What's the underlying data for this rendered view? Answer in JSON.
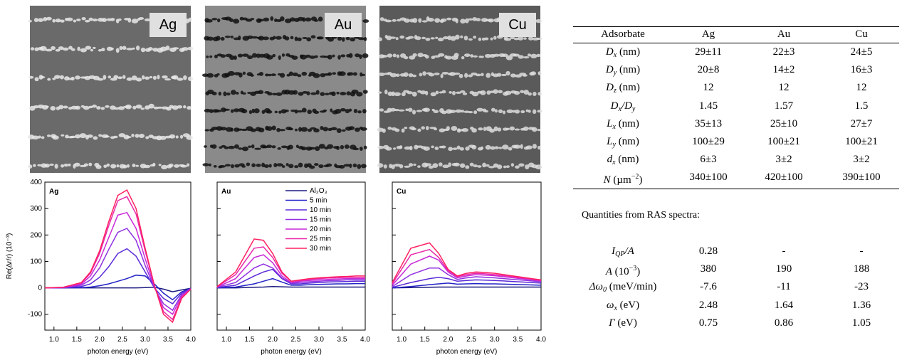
{
  "images": [
    {
      "label": "Ag"
    },
    {
      "label": "Au"
    },
    {
      "label": "Cu"
    }
  ],
  "chart_data": [
    {
      "type": "line",
      "title": "Ag",
      "ylabel": "Re(Δr/r) (10⁻³)",
      "xlabel": "photon energy (eV)",
      "x": [
        0.8,
        1.2,
        1.6,
        1.8,
        2.0,
        2.2,
        2.4,
        2.6,
        2.8,
        3.0,
        3.2,
        3.4,
        3.6,
        3.8,
        4.0
      ],
      "xlim": [
        0.8,
        4.0
      ],
      "ylim": [
        -160,
        400
      ],
      "xticks": [
        {
          "value": 1,
          "label": "1.0"
        },
        {
          "value": 1.5,
          "label": "1.5"
        },
        {
          "value": 2,
          "label": "2.0"
        },
        {
          "value": 2.5,
          "label": "2.5"
        },
        {
          "value": 3,
          "label": "3.0"
        },
        {
          "value": 3.5,
          "label": "3.5"
        },
        {
          "value": 4,
          "label": "4.0"
        }
      ],
      "yticks": [
        -100,
        0,
        100,
        200,
        300,
        400
      ],
      "series": [
        {
          "color": "#1a1a80",
          "values": [
            0,
            0,
            0,
            0,
            0,
            0,
            0,
            0,
            0,
            1,
            2,
            -5,
            -15,
            -8,
            -2
          ]
        },
        {
          "color": "#2222c8",
          "values": [
            0,
            0,
            1,
            3,
            8,
            15,
            25,
            35,
            48,
            45,
            15,
            -20,
            -45,
            -15,
            -2
          ]
        },
        {
          "color": "#5a2ad8",
          "values": [
            0,
            0,
            5,
            15,
            40,
            80,
            130,
            148,
            120,
            60,
            0,
            -40,
            -60,
            -20,
            -2
          ]
        },
        {
          "color": "#9030e0",
          "values": [
            0,
            1,
            10,
            30,
            75,
            145,
            210,
            225,
            180,
            85,
            0,
            -60,
            -85,
            -25,
            -3
          ]
        },
        {
          "color": "#c828d8",
          "values": [
            0,
            1,
            14,
            45,
            105,
            190,
            275,
            285,
            225,
            110,
            5,
            -75,
            -100,
            -30,
            -4
          ]
        },
        {
          "color": "#e828a8",
          "values": [
            0,
            2,
            18,
            55,
            130,
            235,
            330,
            345,
            280,
            140,
            10,
            -90,
            -120,
            -35,
            -5
          ]
        },
        {
          "color": "#ff2060",
          "values": [
            0,
            2,
            20,
            60,
            140,
            250,
            350,
            370,
            300,
            150,
            10,
            -100,
            -130,
            -40,
            -5
          ]
        }
      ]
    },
    {
      "type": "line",
      "title": "Au",
      "xlabel": "photon energy (eV)",
      "x": [
        0.8,
        1.2,
        1.6,
        1.8,
        2.0,
        2.2,
        2.4,
        2.6,
        2.8,
        3.0,
        3.2,
        3.4,
        3.6,
        3.8,
        4.0
      ],
      "xlim": [
        0.8,
        4.0
      ],
      "ylim": [
        -160,
        400
      ],
      "xticks": [
        {
          "value": 1,
          "label": "1.0"
        },
        {
          "value": 1.5,
          "label": "1.5"
        },
        {
          "value": 2,
          "label": "2.0"
        },
        {
          "value": 2.5,
          "label": "2.5"
        },
        {
          "value": 3,
          "label": "3.0"
        },
        {
          "value": 3.5,
          "label": "3.5"
        },
        {
          "value": 4,
          "label": "4.0"
        }
      ],
      "series": [
        {
          "name": "Al₂O₃",
          "color": "#1a1a80",
          "values": [
            0,
            0,
            2,
            3,
            5,
            4,
            3,
            3,
            3,
            3,
            3,
            3,
            3,
            3,
            3
          ]
        },
        {
          "name": "5 min",
          "color": "#2222c8",
          "values": [
            0,
            3,
            15,
            25,
            35,
            22,
            10,
            10,
            12,
            13,
            14,
            15,
            15,
            16,
            16
          ]
        },
        {
          "name": "10 min",
          "color": "#5a2ad8",
          "values": [
            1,
            10,
            45,
            60,
            70,
            35,
            15,
            15,
            18,
            20,
            22,
            23,
            24,
            25,
            25
          ]
        },
        {
          "name": "15 min",
          "color": "#9030e0",
          "values": [
            2,
            20,
            75,
            90,
            75,
            38,
            18,
            20,
            23,
            25,
            27,
            28,
            30,
            30,
            30
          ]
        },
        {
          "name": "20 min",
          "color": "#c828d8",
          "values": [
            3,
            35,
            115,
            125,
            95,
            45,
            20,
            25,
            28,
            30,
            32,
            33,
            35,
            35,
            35
          ]
        },
        {
          "name": "25 min",
          "color": "#e828a8",
          "values": [
            4,
            50,
            150,
            155,
            115,
            55,
            25,
            28,
            32,
            35,
            37,
            38,
            40,
            40,
            40
          ]
        },
        {
          "name": "30 min",
          "color": "#ff2060",
          "values": [
            5,
            60,
            185,
            180,
            130,
            60,
            25,
            30,
            35,
            38,
            40,
            42,
            43,
            45,
            45
          ]
        }
      ]
    },
    {
      "type": "line",
      "title": "Cu",
      "xlabel": "photon energy (eV)",
      "x": [
        0.8,
        1.2,
        1.6,
        1.8,
        2.0,
        2.2,
        2.4,
        2.6,
        2.8,
        3.0,
        3.2,
        3.4,
        3.6,
        3.8,
        4.0
      ],
      "xlim": [
        0.8,
        4.0
      ],
      "ylim": [
        -160,
        400
      ],
      "xticks": [
        {
          "value": 1,
          "label": "1.0"
        },
        {
          "value": 1.5,
          "label": "1.5"
        },
        {
          "value": 2,
          "label": "2.0"
        },
        {
          "value": 2.5,
          "label": "2.5"
        },
        {
          "value": 3,
          "label": "3.0"
        },
        {
          "value": 3.5,
          "label": "3.5"
        },
        {
          "value": 4,
          "label": "4.0"
        }
      ],
      "series": [
        {
          "color": "#1a1a80",
          "values": [
            0,
            1,
            2,
            3,
            3,
            3,
            3,
            3,
            3,
            3,
            3,
            3,
            3,
            3,
            3
          ]
        },
        {
          "color": "#2222c8",
          "values": [
            0,
            5,
            12,
            15,
            18,
            14,
            15,
            16,
            15,
            15,
            14,
            13,
            12,
            11,
            10
          ]
        },
        {
          "color": "#5a2ad8",
          "values": [
            2,
            20,
            35,
            40,
            35,
            25,
            28,
            30,
            29,
            28,
            26,
            24,
            22,
            20,
            18
          ]
        },
        {
          "color": "#9030e0",
          "values": [
            5,
            50,
            75,
            75,
            50,
            32,
            38,
            42,
            40,
            38,
            35,
            32,
            29,
            26,
            23
          ]
        },
        {
          "color": "#c828d8",
          "values": [
            10,
            90,
            120,
            105,
            60,
            38,
            45,
            50,
            48,
            46,
            42,
            38,
            34,
            30,
            26
          ]
        },
        {
          "color": "#e828a8",
          "values": [
            15,
            125,
            145,
            115,
            65,
            42,
            50,
            55,
            53,
            50,
            46,
            42,
            37,
            33,
            28
          ]
        },
        {
          "color": "#ff2060",
          "values": [
            20,
            150,
            170,
            130,
            70,
            45,
            55,
            60,
            58,
            55,
            50,
            45,
            40,
            35,
            30
          ]
        }
      ]
    }
  ],
  "table": {
    "header": [
      "Adsorbate",
      "Ag",
      "Au",
      "Cu"
    ],
    "rows": [
      [
        [
          {
            "text": "D",
            "style": "italic"
          },
          {
            "text": "x",
            "style": "sub"
          },
          {
            "text": " (nm)",
            "style": "normal"
          }
        ],
        "29±11",
        "22±3",
        "24±5"
      ],
      [
        [
          {
            "text": "D",
            "style": "italic"
          },
          {
            "text": "y",
            "style": "sub"
          },
          {
            "text": " (nm)",
            "style": "normal"
          }
        ],
        "20±8",
        "14±2",
        "16±3"
      ],
      [
        [
          {
            "text": "D",
            "style": "italic"
          },
          {
            "text": "z",
            "style": "sub"
          },
          {
            "text": " (nm)",
            "style": "normal"
          }
        ],
        "12",
        "12",
        "12"
      ],
      [
        [
          {
            "text": "D",
            "style": "italic"
          },
          {
            "text": "x",
            "style": "sub"
          },
          {
            "text": "/D",
            "style": "italic"
          },
          {
            "text": "y",
            "style": "sub"
          }
        ],
        "1.45",
        "1.57",
        "1.5"
      ],
      [
        [
          {
            "text": "L",
            "style": "italic"
          },
          {
            "text": "x",
            "style": "sub"
          },
          {
            "text": " (nm)",
            "style": "normal"
          }
        ],
        "35±13",
        "25±10",
        "27±7"
      ],
      [
        [
          {
            "text": "L",
            "style": "italic"
          },
          {
            "text": "y",
            "style": "sub"
          },
          {
            "text": " (nm)",
            "style": "normal"
          }
        ],
        "100±29",
        "100±21",
        "100±21"
      ],
      [
        [
          {
            "text": "d",
            "style": "italic"
          },
          {
            "text": "x",
            "style": "sub"
          },
          {
            "text": " (nm)",
            "style": "normal"
          }
        ],
        "6±3",
        "3±2",
        "3±2"
      ],
      [
        [
          {
            "text": "N",
            "style": "italic"
          },
          {
            "text": " (µm",
            "style": "normal"
          },
          {
            "text": "−2",
            "style": "sup"
          },
          {
            "text": ")",
            "style": "normal"
          }
        ],
        "340±100",
        "420±100",
        "390±100"
      ]
    ],
    "note": "Quantities from RAS spectra:",
    "rows2": [
      [
        [
          {
            "text": "I",
            "style": "italic"
          },
          {
            "text": "QP",
            "style": "sub"
          },
          {
            "text": "/A",
            "style": "italic"
          }
        ],
        "0.28",
        "-",
        "-"
      ],
      [
        [
          {
            "text": "A",
            "style": "italic"
          },
          {
            "text": " (10",
            "style": "normal"
          },
          {
            "text": "−3",
            "style": "sup"
          },
          {
            "text": ")",
            "style": "normal"
          }
        ],
        "380",
        "190",
        "188"
      ],
      [
        [
          {
            "text": "Δω",
            "style": "italic"
          },
          {
            "text": "0",
            "style": "sub"
          },
          {
            "text": " (meV/min)",
            "style": "normal"
          }
        ],
        "-7.6",
        "-11",
        "-23"
      ],
      [
        [
          {
            "text": "ω",
            "style": "italic"
          },
          {
            "text": "x",
            "style": "sub"
          },
          {
            "text": " (eV)",
            "style": "normal"
          }
        ],
        "2.48",
        "1.64",
        "1.36"
      ],
      [
        [
          {
            "text": "Γ",
            "style": "italic"
          },
          {
            "text": " (eV)",
            "style": "normal"
          }
        ],
        "0.75",
        "0.86",
        "1.05"
      ]
    ]
  }
}
